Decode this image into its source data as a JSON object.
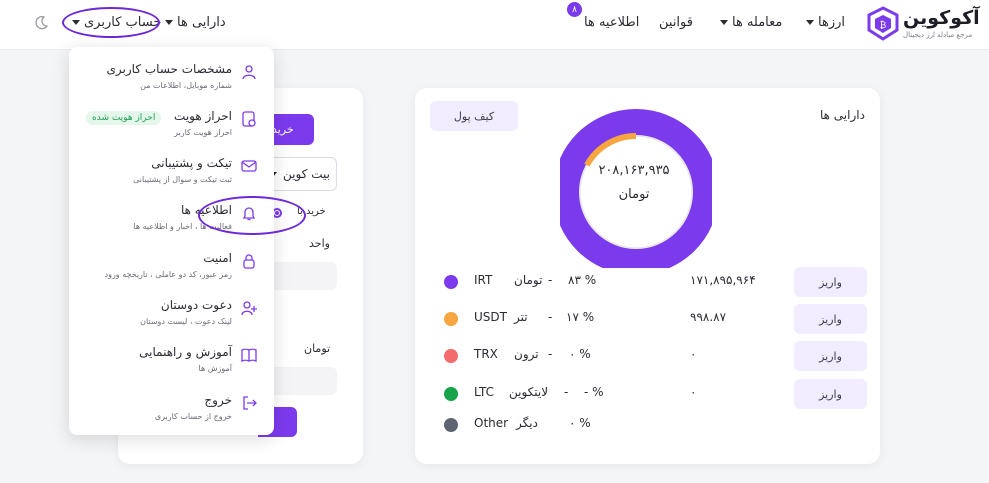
{
  "header": {
    "logo": {
      "title": "آکوکوین",
      "subtitle": "مرجع مبادله ارز دیجیتال"
    },
    "nav": {
      "currencies": "ارزها",
      "trades": "معامله ها",
      "rules": "قوانین",
      "notifications": "اطلاعیه ها",
      "notifications_count": "۸",
      "assets": "دارایی ها",
      "account": "حساب کاربری"
    },
    "icons": {
      "logo": "shield-logo-icon",
      "theme": "moon-icon"
    }
  },
  "account_menu": {
    "items": [
      {
        "title": "مشخصات حساب کاربری",
        "subtitle": "شماره موبایل، اطلاعات من",
        "icon": "user-icon"
      },
      {
        "title": "احراز هویت",
        "subtitle": "احراز هویت کاربر",
        "icon": "id-card-icon",
        "badge": "احراز هویت شده"
      },
      {
        "title": "تیکت و پشتیبانی",
        "subtitle": "ثبت تیکت و سوال از پشتیبانی",
        "icon": "mail-icon"
      },
      {
        "title": "اطلاعیه ها",
        "subtitle": "فعالیت ها ، اخبار و اطلاعیه ها",
        "icon": "bell-icon"
      },
      {
        "title": "امنیت",
        "subtitle": "رمز عبور، کد دو عاملی ، تاریخچه ورود",
        "icon": "lock-icon"
      },
      {
        "title": "دعوت دوستان",
        "subtitle": "لینک دعوت ، لیست دوستان",
        "icon": "user-plus-icon"
      },
      {
        "title": "آموزش و راهنمایی",
        "subtitle": "آموزش ها",
        "icon": "book-icon"
      },
      {
        "title": "خروج",
        "subtitle": "خروج از حساب کاربری",
        "icon": "logout-icon"
      }
    ]
  },
  "trade_panel": {
    "buy_tab": "خرید",
    "coin_select": "بیت کوین",
    "order_type": "خرید با",
    "unit_label": "واحد",
    "toman_label": "تومان"
  },
  "assets": {
    "title": "دارایی ها",
    "wallet_button": "کیف پول",
    "total_value": "۲۰۸,۱۶۳,۹۳۵",
    "total_unit": "تومان",
    "deposit_label": "واریز",
    "rows": [
      {
        "symbol": "IRT",
        "name": "تومان",
        "percent": "۸۳ %",
        "balance": "۱۷۱,۸۹۵,۹۶۴",
        "color": "#7c3aed"
      },
      {
        "symbol": "USDT",
        "name": "تتر",
        "percent": "۱۷ %",
        "balance": "۹۹۸.۸۷",
        "color": "#f7a541"
      },
      {
        "symbol": "TRX",
        "name": "ترون",
        "percent": "۰ %",
        "balance": "۰",
        "color": "#f46b6b"
      },
      {
        "symbol": "LTC",
        "name": "لایتکوین",
        "percent": "- %",
        "balance": "۰",
        "color": "#16a34a"
      },
      {
        "symbol": "Other",
        "name": "دیگر",
        "percent": "۰ %",
        "balance": "",
        "color": "#5f6474"
      }
    ],
    "separator": "-"
  },
  "chart_data": {
    "type": "pie",
    "categories": [
      "IRT",
      "USDT",
      "TRX",
      "LTC",
      "Other"
    ],
    "values": [
      83,
      17,
      0,
      0,
      0
    ],
    "colors": [
      "#7c3aed",
      "#f7a541",
      "#f46b6b",
      "#16a34a",
      "#5f6474"
    ]
  }
}
